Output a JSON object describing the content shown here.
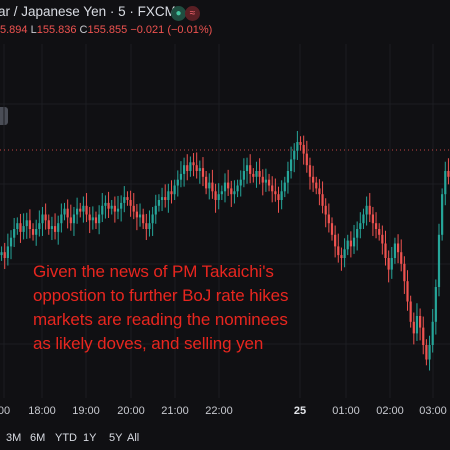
{
  "header": {
    "title": "ar / Japanese Yen · 5 · FXCM",
    "status_icons": [
      "live-dot-icon",
      "wave-icon"
    ],
    "ohlc": {
      "h_partial": "5.894",
      "l_key": "L",
      "l_val": "155.836",
      "c_key": "C",
      "c_val": "155.855",
      "change": "−0.021 (−0.01%)"
    }
  },
  "annotation": {
    "text": "Given the news of PM Takaichi's\noppostion to further BoJ rate hikes\nmarkets are reading the nominees\nas likely doves, and selling yen"
  },
  "time_axis": {
    "labels": [
      "00",
      "18:00",
      "19:00",
      "20:00",
      "21:00",
      "22:00",
      "25",
      "01:00",
      "02:00",
      "03:00"
    ]
  },
  "range_bar": {
    "buttons": [
      "3M",
      "6M",
      "YTD",
      "1Y",
      "5Y",
      "All"
    ]
  },
  "colors": {
    "up": "#26a69a",
    "down": "#ef5350",
    "annotation": "#e8261f",
    "background": "#101013"
  },
  "chart_data": {
    "type": "candlestick",
    "pair": "USD/JPY",
    "interval": "5",
    "price_line": 155.855,
    "shape": [
      0.42,
      0.4,
      0.44,
      0.47,
      0.5,
      0.52,
      0.49,
      0.51,
      0.53,
      0.5,
      0.48,
      0.5,
      0.52,
      0.55,
      0.53,
      0.5,
      0.51,
      0.49,
      0.52,
      0.55,
      0.57,
      0.54,
      0.52,
      0.55,
      0.57,
      0.56,
      0.58,
      0.55,
      0.53,
      0.54,
      0.52,
      0.55,
      0.58,
      0.59,
      0.57,
      0.58,
      0.56,
      0.57,
      0.59,
      0.61,
      0.6,
      0.58,
      0.56,
      0.54,
      0.55,
      0.52,
      0.5,
      0.52,
      0.55,
      0.58,
      0.6,
      0.61,
      0.6,
      0.63,
      0.62,
      0.65,
      0.67,
      0.69,
      0.72,
      0.7,
      0.73,
      0.72,
      0.7,
      0.71,
      0.68,
      0.64,
      0.66,
      0.63,
      0.6,
      0.62,
      0.63,
      0.66,
      0.64,
      0.62,
      0.63,
      0.65,
      0.67,
      0.7,
      0.72,
      0.69,
      0.68,
      0.7,
      0.68,
      0.66,
      0.67,
      0.65,
      0.63,
      0.62,
      0.6,
      0.63,
      0.66,
      0.7,
      0.74,
      0.77,
      0.8,
      0.79,
      0.76,
      0.72,
      0.68,
      0.66,
      0.64,
      0.62,
      0.58,
      0.55,
      0.52,
      0.48,
      0.44,
      0.41,
      0.4,
      0.43,
      0.46,
      0.44,
      0.47,
      0.5,
      0.52,
      0.55,
      0.58,
      0.55,
      0.52,
      0.5,
      0.48,
      0.45,
      0.4,
      0.36,
      0.4,
      0.45,
      0.42,
      0.38,
      0.32,
      0.25,
      0.18,
      0.14,
      0.2,
      0.16,
      0.1,
      0.05,
      0.1,
      0.18,
      0.3,
      0.48,
      0.62,
      0.7,
      0.68
    ]
  }
}
